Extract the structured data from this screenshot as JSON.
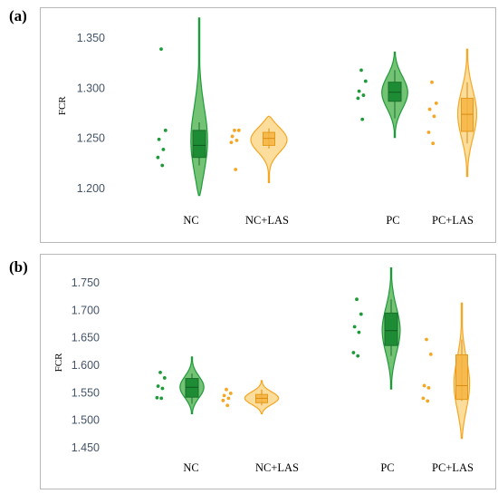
{
  "colors": {
    "green": "#1e9a3a",
    "green_fill": "#5cb85c",
    "green_box": "#1e8c35",
    "orange": "#f5a623",
    "orange_fill": "#fcd27a",
    "orange_box": "#f6b441",
    "tick_text": "#44546a"
  },
  "chart_data": [
    {
      "type": "violin",
      "panel": "(a)",
      "ylabel": "FCR",
      "yticks": [
        "1.350",
        "1.300",
        "1.250",
        "1.200"
      ],
      "ylim": [
        1.18,
        1.385
      ],
      "categories": [
        "NC",
        "NC+LAS",
        "PC",
        "PC+LAS"
      ],
      "groups": [
        {
          "label": "NC",
          "color": "green",
          "points": [
            1.339,
            1.258,
            1.249,
            1.239,
            1.231,
            1.223
          ],
          "violin_min": 1.193,
          "violin_max": 1.37,
          "q1": 1.231,
          "median": 1.243,
          "q3": 1.258,
          "whisker_low": 1.223,
          "whisker_high": 1.266
        },
        {
          "label": "NC+LAS",
          "color": "orange",
          "points": [
            1.258,
            1.258,
            1.252,
            1.248,
            1.246,
            1.219
          ],
          "violin_min": 1.206,
          "violin_max": 1.272,
          "q1": 1.243,
          "median": 1.25,
          "q3": 1.256,
          "whisker_low": 1.24,
          "whisker_high": 1.26
        },
        {
          "label": "PC",
          "color": "green",
          "points": [
            1.318,
            1.307,
            1.297,
            1.293,
            1.29,
            1.269
          ],
          "violin_min": 1.251,
          "violin_max": 1.336,
          "q1": 1.287,
          "median": 1.296,
          "q3": 1.306,
          "whisker_low": 1.27,
          "whisker_high": 1.318
        },
        {
          "label": "PC+LAS",
          "color": "orange",
          "points": [
            1.306,
            1.285,
            1.279,
            1.272,
            1.256,
            1.245
          ],
          "violin_min": 1.212,
          "violin_max": 1.339,
          "q1": 1.257,
          "median": 1.274,
          "q3": 1.29,
          "whisker_low": 1.245,
          "whisker_high": 1.306
        }
      ]
    },
    {
      "type": "violin",
      "panel": "(b)",
      "ylabel": "FCR",
      "yticks": [
        "1.750",
        "1.700",
        "1.650",
        "1.600",
        "1.550",
        "1.500",
        "1.450"
      ],
      "ylim": [
        1.43,
        1.78
      ],
      "categories": [
        "NC",
        "NC+LAS",
        "PC",
        "PC+LAS"
      ],
      "groups": [
        {
          "label": "NC",
          "color": "green",
          "points": [
            1.587,
            1.577,
            1.562,
            1.558,
            1.541,
            1.54
          ],
          "violin_min": 1.512,
          "violin_max": 1.615,
          "q1": 1.542,
          "median": 1.56,
          "q3": 1.576,
          "whisker_low": 1.53,
          "whisker_high": 1.585
        },
        {
          "label": "NC+LAS",
          "color": "orange",
          "points": [
            1.556,
            1.549,
            1.545,
            1.54,
            1.536,
            1.527
          ],
          "violin_min": 1.512,
          "violin_max": 1.572,
          "q1": 1.532,
          "median": 1.54,
          "q3": 1.547,
          "whisker_low": 1.527,
          "whisker_high": 1.556
        },
        {
          "label": "PC",
          "color": "green",
          "points": [
            1.72,
            1.693,
            1.67,
            1.66,
            1.623,
            1.617
          ],
          "violin_min": 1.557,
          "violin_max": 1.777,
          "q1": 1.636,
          "median": 1.663,
          "q3": 1.695,
          "whisker_low": 1.617,
          "whisker_high": 1.72
        },
        {
          "label": "PC+LAS",
          "color": "orange",
          "points": [
            1.647,
            1.62,
            1.563,
            1.559,
            1.54,
            1.535
          ],
          "violin_min": 1.467,
          "violin_max": 1.713,
          "q1": 1.538,
          "median": 1.563,
          "q3": 1.619,
          "whisker_low": 1.535,
          "whisker_high": 1.647
        }
      ]
    }
  ]
}
